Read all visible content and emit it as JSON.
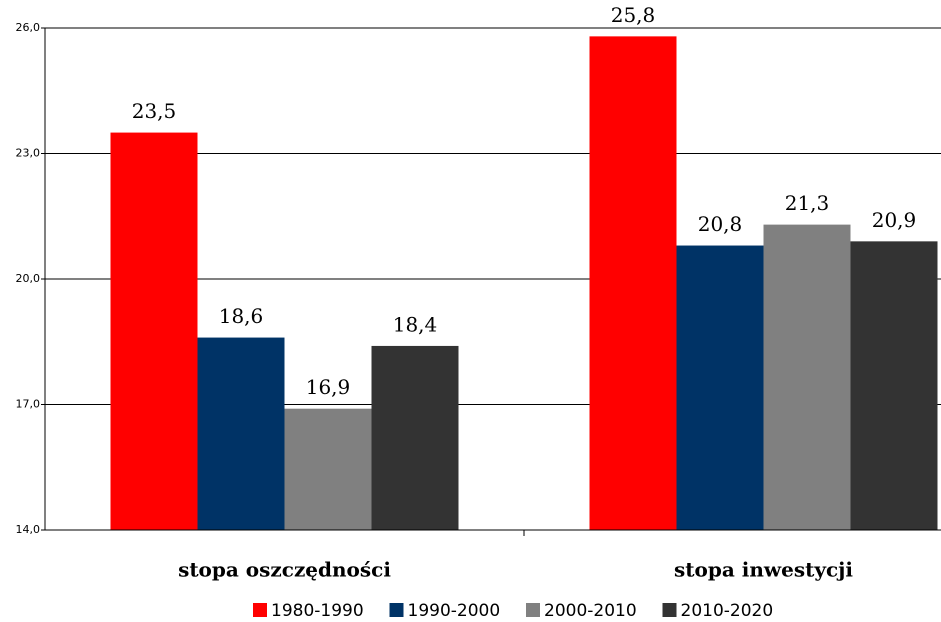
{
  "chart_data": {
    "type": "bar",
    "categories": [
      "stopa oszczędności",
      "stopa inwestycji"
    ],
    "series": [
      {
        "name": "1980-1990",
        "color": "#ff0000",
        "values": [
          23.5,
          25.8
        ],
        "value_labels": [
          "23,5",
          "25,8"
        ]
      },
      {
        "name": "1990-2000",
        "color": "#003366",
        "values": [
          18.6,
          20.8
        ],
        "value_labels": [
          "18,6",
          "20,8"
        ]
      },
      {
        "name": "2000-2010",
        "color": "#808080",
        "values": [
          16.9,
          21.3
        ],
        "value_labels": [
          "16,9",
          "21,3"
        ]
      },
      {
        "name": "2010-2020",
        "color": "#333333",
        "values": [
          18.4,
          20.9
        ],
        "value_labels": [
          "18,4",
          "20,9"
        ]
      }
    ],
    "ylim": [
      14,
      26
    ],
    "yticks": [
      {
        "value": 14,
        "label": "14,0"
      },
      {
        "value": 17,
        "label": "17,0"
      },
      {
        "value": 20,
        "label": "20,0"
      },
      {
        "value": 23,
        "label": "23,0"
      },
      {
        "value": 26,
        "label": "26,0"
      }
    ],
    "grid": true,
    "legend": "bottom"
  }
}
